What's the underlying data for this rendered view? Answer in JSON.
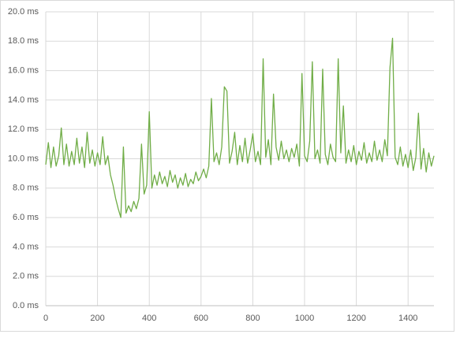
{
  "chart_data": {
    "type": "line",
    "x": [
      0,
      10,
      20,
      30,
      40,
      50,
      60,
      70,
      80,
      90,
      100,
      110,
      120,
      130,
      140,
      150,
      160,
      170,
      180,
      190,
      200,
      210,
      220,
      230,
      240,
      250,
      260,
      270,
      280,
      290,
      300,
      310,
      320,
      330,
      340,
      350,
      360,
      370,
      380,
      390,
      400,
      410,
      420,
      430,
      440,
      450,
      460,
      470,
      480,
      490,
      500,
      510,
      520,
      530,
      540,
      550,
      560,
      570,
      580,
      590,
      600,
      610,
      620,
      630,
      640,
      650,
      660,
      670,
      680,
      690,
      700,
      710,
      720,
      730,
      740,
      750,
      760,
      770,
      780,
      790,
      800,
      810,
      820,
      830,
      840,
      850,
      860,
      870,
      880,
      890,
      900,
      910,
      920,
      930,
      940,
      950,
      960,
      970,
      980,
      990,
      1000,
      1010,
      1020,
      1030,
      1040,
      1050,
      1060,
      1070,
      1080,
      1090,
      1100,
      1110,
      1120,
      1130,
      1140,
      1150,
      1160,
      1170,
      1180,
      1190,
      1200,
      1210,
      1220,
      1230,
      1240,
      1250,
      1260,
      1270,
      1280,
      1290,
      1300,
      1310,
      1320,
      1330,
      1340,
      1350,
      1360,
      1370,
      1380,
      1390,
      1400,
      1410,
      1420,
      1430,
      1440,
      1450,
      1460,
      1470,
      1480,
      1490,
      1500
    ],
    "series": [
      {
        "color": "#70ad47",
        "values": [
          9.6,
          11.1,
          9.4,
          10.8,
          9.5,
          10.2,
          12.1,
          9.6,
          11.0,
          9.5,
          10.5,
          9.6,
          11.4,
          9.7,
          10.8,
          9.4,
          11.8,
          9.7,
          10.6,
          9.5,
          10.4,
          9.6,
          11.5,
          9.6,
          10.2,
          8.9,
          8.2,
          7.3,
          6.6,
          6.0,
          10.8,
          6.3,
          6.8,
          6.4,
          7.1,
          6.6,
          7.3,
          11.0,
          7.6,
          8.2,
          13.2,
          8.0,
          8.9,
          8.2,
          9.1,
          8.3,
          8.8,
          8.1,
          9.2,
          8.4,
          8.9,
          8.0,
          8.7,
          8.2,
          9.0,
          8.1,
          8.6,
          8.3,
          9.1,
          8.5,
          8.8,
          9.3,
          8.7,
          9.5,
          14.1,
          9.8,
          10.4,
          9.6,
          10.8,
          14.9,
          14.6,
          9.7,
          10.5,
          11.8,
          9.6,
          10.9,
          9.8,
          11.4,
          9.7,
          10.6,
          11.7,
          9.8,
          10.5,
          9.6,
          16.8,
          10.1,
          11.3,
          9.6,
          14.4,
          10.8,
          9.9,
          11.2,
          10.0,
          10.6,
          9.8,
          10.7,
          10.1,
          11.0,
          9.5,
          15.8,
          10.2,
          9.8,
          11.2,
          16.6,
          10.0,
          10.6,
          9.7,
          16.1,
          10.3,
          9.6,
          11.0,
          10.1,
          9.8,
          16.8,
          10.4,
          13.6,
          9.7,
          10.6,
          9.8,
          10.9,
          9.6,
          10.5,
          9.9,
          11.1,
          9.7,
          10.4,
          9.8,
          11.2,
          9.9,
          10.6,
          9.8,
          11.3,
          10.2,
          16.2,
          18.2,
          10.1,
          9.6,
          10.8,
          9.5,
          10.3,
          9.4,
          10.6,
          9.2,
          10.1,
          13.1,
          9.3,
          10.7,
          9.1,
          10.4,
          9.5,
          10.2
        ]
      }
    ],
    "xlim": [
      0,
      1500
    ],
    "xticks": [
      0,
      200,
      400,
      600,
      800,
      1000,
      1200,
      1400
    ],
    "ylim": [
      0,
      20
    ],
    "yticks": [
      {
        "value": 0,
        "label": "0.0 ms"
      },
      {
        "value": 2,
        "label": "2.0 ms"
      },
      {
        "value": 4,
        "label": "4.0 ms"
      },
      {
        "value": 6,
        "label": "6.0 ms"
      },
      {
        "value": 8,
        "label": "8.0 ms"
      },
      {
        "value": 10,
        "label": "10.0 ms"
      },
      {
        "value": 12,
        "label": "12.0 ms"
      },
      {
        "value": 14,
        "label": "14.0 ms"
      },
      {
        "value": 16,
        "label": "16.0 ms"
      },
      {
        "value": 18,
        "label": "18.0 ms"
      },
      {
        "value": 20,
        "label": "20.0 ms"
      }
    ],
    "grid": true
  }
}
